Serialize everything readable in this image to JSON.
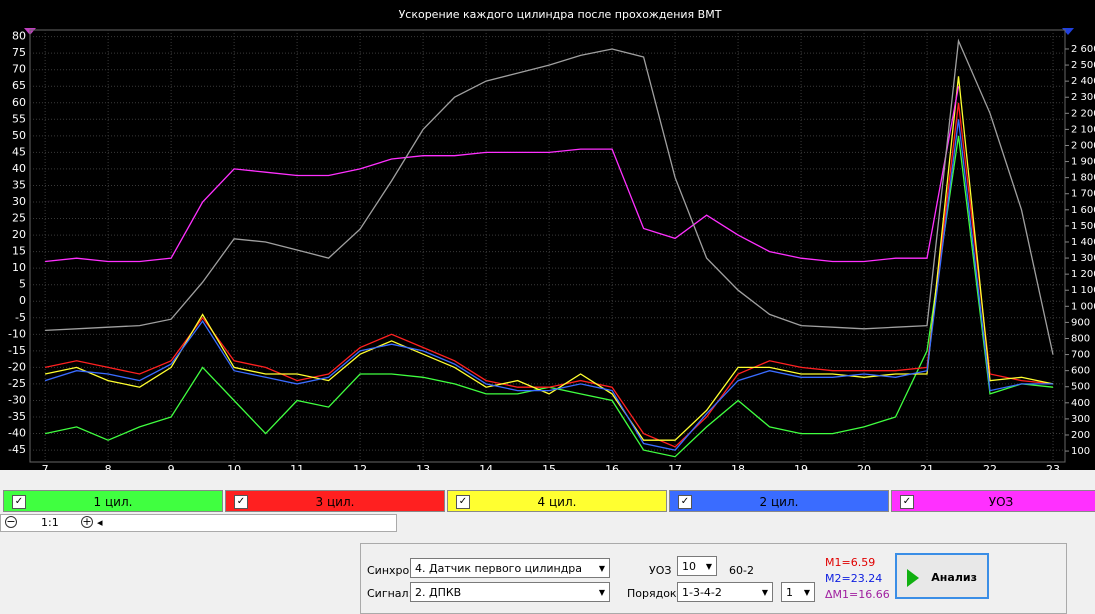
{
  "chart_data": {
    "type": "line",
    "title": "Ускорение каждого цилиндра после прохождения ВМТ",
    "x": [
      7,
      7.5,
      8,
      8.5,
      9,
      9.5,
      10,
      10.5,
      11,
      11.5,
      12,
      12.5,
      13,
      13.5,
      14,
      14.5,
      15,
      15.5,
      16,
      16.5,
      17,
      17.5,
      18,
      18.5,
      19,
      19.5,
      20,
      20.5,
      21,
      21.5,
      22,
      22.5,
      23
    ],
    "xlim": [
      6.76,
      23.19
    ],
    "xticks": [
      7,
      8,
      9,
      10,
      11,
      12,
      13,
      14,
      15,
      16,
      17,
      18,
      19,
      20,
      21,
      22,
      23
    ],
    "ylim": [
      -48.6,
      82
    ],
    "yticks": [
      80,
      75,
      70,
      65,
      60,
      55,
      50,
      45,
      40,
      35,
      30,
      25,
      20,
      15,
      10,
      5,
      0,
      -5,
      -10,
      -15,
      -20,
      -25,
      -30,
      -35,
      -40,
      -45
    ],
    "y2lim": [
      32,
      2718
    ],
    "y2ticks": [
      {
        "value": 2600,
        "label": "2 600"
      },
      {
        "value": 2500,
        "label": "2 500"
      },
      {
        "value": 2400,
        "label": "2 400"
      },
      {
        "value": 2300,
        "label": "2 300"
      },
      {
        "value": 2200,
        "label": "2 200"
      },
      {
        "value": 2100,
        "label": "2 100"
      },
      {
        "value": 2000,
        "label": "2 000"
      },
      {
        "value": 1900,
        "label": "1 900"
      },
      {
        "value": 1800,
        "label": "1 800"
      },
      {
        "value": 1700,
        "label": "1 700"
      },
      {
        "value": 1600,
        "label": "1 600"
      },
      {
        "value": 1500,
        "label": "1 500"
      },
      {
        "value": 1400,
        "label": "1 400"
      },
      {
        "value": 1300,
        "label": "1 300"
      },
      {
        "value": 1200,
        "label": "1 200"
      },
      {
        "value": 1100,
        "label": "1 100"
      },
      {
        "value": 1000,
        "label": "1 000"
      },
      900,
      800,
      700,
      600,
      500,
      400,
      300,
      200,
      100
    ],
    "grid": true,
    "series": [
      {
        "name": "1 цил.",
        "color": "#40ff40",
        "values": [
          -40,
          -38,
          -42,
          -38,
          -35,
          -20,
          -30,
          -40,
          -30,
          -32,
          -22,
          -22,
          -23,
          -25,
          -28,
          -28,
          -26,
          -28,
          -30,
          -45,
          -47,
          -38,
          -30,
          -38,
          -40,
          -40,
          -38,
          -35,
          -15,
          50,
          -28,
          -25,
          -26
        ]
      },
      {
        "name": "3 цил.",
        "color": "#ff2020",
        "values": [
          -20,
          -18,
          -20,
          -22,
          -18,
          -5,
          -18,
          -20,
          -24,
          -22,
          -14,
          -10,
          -14,
          -18,
          -24,
          -26,
          -26,
          -24,
          -26,
          -40,
          -44,
          -35,
          -22,
          -18,
          -20,
          -21,
          -21,
          -21,
          -20,
          60,
          -22,
          -24,
          -25
        ]
      },
      {
        "name": "4 цил.",
        "color": "#ffff30",
        "values": [
          -22,
          -20,
          -24,
          -26,
          -20,
          -4,
          -20,
          -22,
          -22,
          -24,
          -16,
          -12,
          -16,
          -20,
          -26,
          -24,
          -28,
          -22,
          -28,
          -42,
          -42,
          -33,
          -20,
          -20,
          -22,
          -22,
          -23,
          -22,
          -22,
          68,
          -24,
          -23,
          -25
        ]
      },
      {
        "name": "2 цил.",
        "color": "#3a6cff",
        "values": [
          -24,
          -21,
          -22,
          -24,
          -19,
          -6,
          -21,
          -23,
          -25,
          -23,
          -15,
          -13,
          -15,
          -19,
          -25,
          -27,
          -27,
          -25,
          -27,
          -43,
          -45,
          -34,
          -24,
          -21,
          -23,
          -23,
          -22,
          -23,
          -21,
          55,
          -27,
          -25,
          -25
        ]
      },
      {
        "name": "УОЗ",
        "color": "#ff30ff",
        "values": [
          12,
          13,
          12,
          12,
          13,
          30,
          40,
          39,
          38,
          38,
          40,
          43,
          44,
          44,
          45,
          45,
          45,
          46,
          46,
          22,
          19,
          26,
          20,
          15,
          13,
          12,
          12,
          13,
          13,
          65,
          null,
          null,
          null
        ]
      },
      {
        "color": "#a0a0a0",
        "axis": "y2",
        "values": [
          850,
          860,
          870,
          880,
          920,
          1150,
          1420,
          1400,
          1350,
          1300,
          1480,
          1780,
          2100,
          2300,
          2400,
          2450,
          2500,
          2560,
          2600,
          2550,
          1800,
          1300,
          1100,
          950,
          880,
          870,
          860,
          870,
          880,
          2650,
          2200,
          1600,
          700
        ]
      }
    ]
  },
  "zoom": "1:1",
  "controls": {
    "sync_label": "Синхро:",
    "sync_value": "4.  Датчик первого цилиндра",
    "signal_label": "Сигнал:",
    "signal_value": "2.  ДПКВ",
    "uoz_label": "УОЗ",
    "uoz_value": "10",
    "teeth": "60-2",
    "order_label": "Порядок",
    "order_value": "1-3-4-2",
    "order_num": "1",
    "m1": "M1=6.59",
    "m2": "M2=23.24",
    "dm1": "ΔM1=16.66",
    "button": "Анализ"
  }
}
